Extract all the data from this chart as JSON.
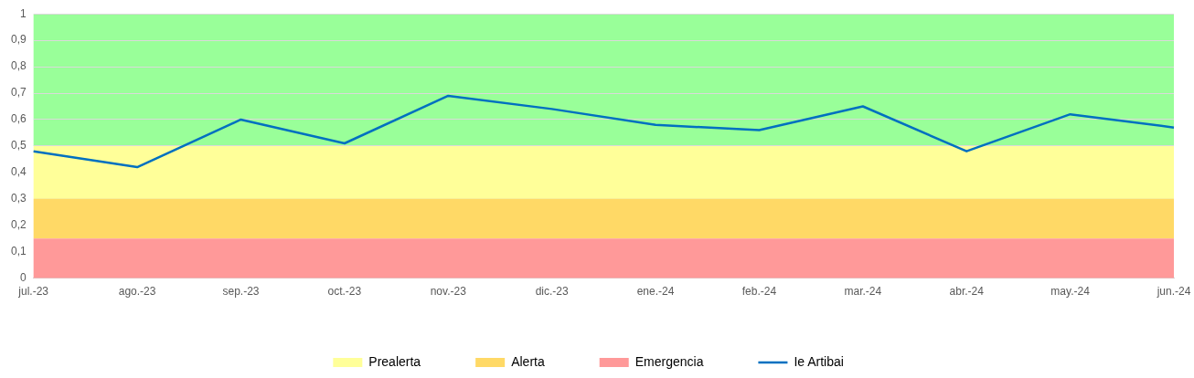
{
  "chart_data": {
    "type": "line",
    "categories": [
      "jul.-23",
      "ago.-23",
      "sep.-23",
      "oct.-23",
      "nov.-23",
      "dic.-23",
      "ene.-24",
      "feb.-24",
      "mar.-24",
      "abr.-24",
      "may.-24",
      "jun.-24"
    ],
    "series": [
      {
        "name": "Ie Artibai",
        "color": "#0070c0",
        "values": [
          0.48,
          0.42,
          0.6,
          0.51,
          0.69,
          0.64,
          0.58,
          0.56,
          0.65,
          0.48,
          0.62,
          0.57
        ]
      }
    ],
    "ylim": [
      0,
      1
    ],
    "yticks": [
      {
        "value": 0,
        "label": "0"
      },
      {
        "value": 0.1,
        "label": "0,1"
      },
      {
        "value": 0.2,
        "label": "0,2"
      },
      {
        "value": 0.3,
        "label": "0,3"
      },
      {
        "value": 0.4,
        "label": "0,4"
      },
      {
        "value": 0.5,
        "label": "0,5"
      },
      {
        "value": 0.6,
        "label": "0,6"
      },
      {
        "value": 0.7,
        "label": "0,7"
      },
      {
        "value": 0.8,
        "label": "0,8"
      },
      {
        "value": 0.9,
        "label": "0,9"
      },
      {
        "value": 1,
        "label": "1"
      }
    ],
    "bands": [
      {
        "axis": "y",
        "from": 0.5,
        "to": 1,
        "color": "#99ff99"
      },
      {
        "axis": "y",
        "from": 0.3,
        "to": 0.5,
        "label": "Prealerta",
        "color": "#ffff99"
      },
      {
        "axis": "y",
        "from": 0.15,
        "to": 0.3,
        "label": "Alerta",
        "color": "#ffd966"
      },
      {
        "axis": "y",
        "from": 0,
        "to": 0.15,
        "label": "Emergencia",
        "color": "#ff9999"
      }
    ],
    "grid": "y",
    "legend": "bottom",
    "marker": "none",
    "line_style": "solid"
  }
}
